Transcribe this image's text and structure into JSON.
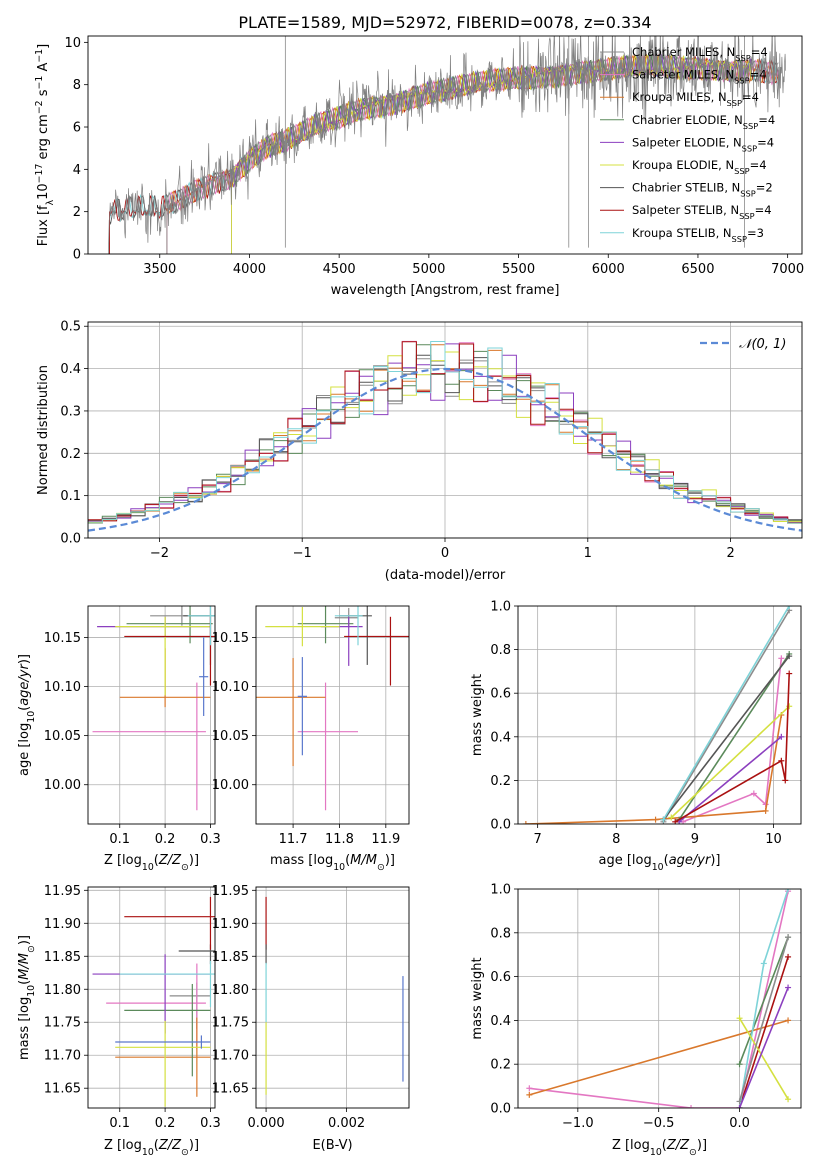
{
  "figure": {
    "title": "PLATE=1589, MJD=52972, FIBERID=0078, z=0.334"
  },
  "colors": {
    "chabrier_miles": "#8c8c8c",
    "salpeter_miles": "#e377c2",
    "kroupa_miles": "#d9782c",
    "chabrier_elodie": "#5b8a5b",
    "salpeter_elodie": "#8b3fbf",
    "kroupa_elodie": "#d4e040",
    "chabrier_stelib": "#555555",
    "salpeter_stelib": "#aa1111",
    "kroupa_stelib": "#7ed3d8",
    "extra_blue": "#5a78cc",
    "normal_curve": "#5b8ad6"
  },
  "chart_data": [
    {
      "id": "spectrum",
      "type": "line",
      "title": "PLATE=1589, MJD=52972, FIBERID=0078, z=0.334",
      "xlabel": "wavelength [Angstrom, rest frame]",
      "ylabel": "Flux [f_λ 10^-17 erg cm^-2 s^-1 A^-1]",
      "xlim": [
        3100,
        7080
      ],
      "ylim": [
        0,
        10.3
      ],
      "xticks": [
        "3500",
        "4000",
        "4500",
        "5000",
        "5500",
        "6000",
        "6500",
        "7000"
      ],
      "yticks": [
        "0",
        "2",
        "4",
        "6",
        "8",
        "10"
      ],
      "legend_position": "right",
      "legend": [
        {
          "key": "chabrier_miles",
          "label": "Chabrier MILES, N",
          "sub": "SSP",
          "suffix": "=4"
        },
        {
          "key": "salpeter_miles",
          "label": "Salpeter MILES, N",
          "sub": "SSP",
          "suffix": "=4"
        },
        {
          "key": "kroupa_miles",
          "label": "Kroupa MILES, N",
          "sub": "SSP",
          "suffix": "=4"
        },
        {
          "key": "chabrier_elodie",
          "label": "Chabrier ELODIE, N",
          "sub": "SSP",
          "suffix": "=4"
        },
        {
          "key": "salpeter_elodie",
          "label": "Salpeter ELODIE, N",
          "sub": "SSP",
          "suffix": "=4"
        },
        {
          "key": "kroupa_elodie",
          "label": "Kroupa ELODIE, N",
          "sub": "SSP",
          "suffix": "=4"
        },
        {
          "key": "chabrier_stelib",
          "label": "Chabrier STELIB, N",
          "sub": "SSP",
          "suffix": "=2"
        },
        {
          "key": "salpeter_stelib",
          "label": "Salpeter STELIB, N",
          "sub": "SSP",
          "suffix": "=4"
        },
        {
          "key": "kroupa_stelib",
          "label": "Kroupa STELIB, N",
          "sub": "SSP",
          "suffix": "=3"
        }
      ],
      "data_trend": {
        "x": [
          3200,
          3300,
          3400,
          3500,
          3600,
          3700,
          3800,
          3900,
          4000,
          4100,
          4200,
          4300,
          4400,
          4500,
          4600,
          4700,
          4800,
          4900,
          5000,
          5200,
          5400,
          5600,
          5800,
          6000,
          6200,
          6400,
          6600,
          6800,
          6950
        ],
        "y": [
          1.9,
          2.1,
          2.2,
          2.1,
          2.5,
          3.0,
          3.4,
          3.7,
          4.5,
          5.1,
          5.3,
          5.7,
          6.1,
          6.4,
          6.8,
          7.0,
          7.2,
          7.4,
          7.6,
          7.9,
          8.2,
          8.4,
          8.6,
          8.7,
          8.8,
          8.8,
          8.8,
          8.7,
          8.5
        ]
      },
      "model_ranges": {
        "chabrier_miles": [
          3540,
          6950
        ],
        "salpeter_miles": [
          3540,
          6950
        ],
        "kroupa_miles": [
          3540,
          6950
        ],
        "chabrier_elodie": [
          3900,
          6800
        ],
        "salpeter_elodie": [
          3900,
          6800
        ],
        "kroupa_elodie": [
          3900,
          6800
        ],
        "chabrier_stelib": [
          3220,
          6950
        ],
        "salpeter_stelib": [
          3220,
          6950
        ],
        "kroupa_stelib": [
          3220,
          6950
        ]
      }
    },
    {
      "id": "residuals",
      "type": "histogram",
      "xlabel": "(data-model)/error",
      "ylabel": "Normed distribution",
      "xlim": [
        -2.5,
        2.5
      ],
      "ylim": [
        0,
        0.51
      ],
      "xticks": [
        "−2",
        "−1",
        "0",
        "1",
        "2"
      ],
      "yticks": [
        "0.0",
        "0.1",
        "0.2",
        "0.3",
        "0.4",
        "0.5"
      ],
      "grid": true,
      "legend_position": "top-right",
      "normal_label": "𝒩(0, 1)",
      "bin_width": 0.1
    },
    {
      "id": "age_vs_Z",
      "type": "errorbar",
      "xlabel": "Z [log10(Z/Z⊙)]",
      "ylabel": "age [log10(age/yr)]",
      "xlim": [
        0.03,
        0.31
      ],
      "ylim": [
        9.96,
        10.182
      ],
      "xticks": [
        "0.1",
        "0.2",
        "0.3"
      ],
      "yticks": [
        "10.00",
        "10.05",
        "10.10",
        "10.15"
      ],
      "grid": true,
      "points": [
        {
          "key": "chabrier_miles",
          "x": 0.237,
          "y": 10.172,
          "xerr": [
            0.07,
            0.06
          ],
          "yerr": [
            0.01,
            0.01
          ]
        },
        {
          "key": "salpeter_miles",
          "x": 0.27,
          "y": 10.054,
          "xerr": [
            0.23,
            0.02
          ],
          "yerr": [
            0.08,
            0.05
          ]
        },
        {
          "key": "kroupa_miles",
          "x": 0.2,
          "y": 10.089,
          "xerr": [
            0.1,
            0.1
          ],
          "yerr": [
            0.01,
            0.05
          ]
        },
        {
          "key": "chabrier_elodie",
          "x": 0.255,
          "y": 10.164,
          "xerr": [
            0.14,
            0.05
          ],
          "yerr": [
            0.02,
            0.03
          ]
        },
        {
          "key": "salpeter_elodie",
          "x": 0.2,
          "y": 10.161,
          "xerr": [
            0.15,
            0.1
          ],
          "yerr": [
            0.01,
            0.01
          ]
        },
        {
          "key": "kroupa_elodie",
          "x": 0.2,
          "y": 10.161,
          "xerr": [
            0.11,
            0.1
          ],
          "yerr": [
            0.07,
            0.01
          ]
        },
        {
          "key": "chabrier_stelib",
          "x": 0.3,
          "y": 10.172,
          "xerr": [
            0.06,
            0.01
          ],
          "yerr": [
            0.05,
            0.01
          ]
        },
        {
          "key": "salpeter_stelib",
          "x": 0.3,
          "y": 10.151,
          "xerr": [
            0.19,
            0.01
          ],
          "yerr": [
            0.05,
            0.02
          ]
        },
        {
          "key": "kroupa_stelib",
          "x": 0.3,
          "y": 10.172,
          "xerr": [
            0.05,
            0.01
          ],
          "yerr": [
            0.03,
            0.01
          ]
        },
        {
          "key": "extra_blue",
          "x": 0.285,
          "y": 10.11,
          "xerr": [
            0.01,
            0.01
          ],
          "yerr": [
            0.04,
            0.04
          ]
        }
      ]
    },
    {
      "id": "age_vs_mass",
      "type": "errorbar",
      "xlabel": "mass [log10(M/M⊙)]",
      "xlim": [
        11.62,
        11.95
      ],
      "ylim": [
        9.96,
        10.182
      ],
      "xticks": [
        "11.7",
        "11.8",
        "11.9"
      ],
      "yticks": [
        "10.00",
        "10.05",
        "10.10",
        "10.15"
      ],
      "grid": true,
      "points": [
        {
          "key": "chabrier_miles",
          "x": 11.82,
          "y": 10.17,
          "xerr": [
            0.03,
            0.02
          ],
          "yerr": [
            0.01,
            0.01
          ]
        },
        {
          "key": "salpeter_miles",
          "x": 11.77,
          "y": 10.054,
          "xerr": [
            0.06,
            0.07
          ],
          "yerr": [
            0.08,
            0.05
          ]
        },
        {
          "key": "kroupa_miles",
          "x": 11.7,
          "y": 10.089,
          "xerr": [
            0.08,
            0.07
          ],
          "yerr": [
            0.07,
            0.04
          ]
        },
        {
          "key": "chabrier_elodie",
          "x": 11.77,
          "y": 10.164,
          "xerr": [
            0.06,
            0.06
          ],
          "yerr": [
            0.02,
            0.02
          ]
        },
        {
          "key": "salpeter_elodie",
          "x": 11.82,
          "y": 10.161,
          "xerr": [
            0.06,
            0.03
          ],
          "yerr": [
            0.04,
            0.01
          ]
        },
        {
          "key": "kroupa_elodie",
          "x": 11.72,
          "y": 10.161,
          "xerr": [
            0.08,
            0.08
          ],
          "yerr": [
            0.02,
            0.02
          ]
        },
        {
          "key": "chabrier_stelib",
          "x": 11.86,
          "y": 10.172,
          "xerr": [
            0.06,
            0.01
          ],
          "yerr": [
            0.05,
            0.01
          ]
        },
        {
          "key": "salpeter_stelib",
          "x": 11.91,
          "y": 10.151,
          "xerr": [
            0.1,
            0.04
          ],
          "yerr": [
            0.05,
            0.02
          ]
        },
        {
          "key": "kroupa_stelib",
          "x": 11.84,
          "y": 10.172,
          "xerr": [
            0.05,
            0.01
          ],
          "yerr": [
            0.03,
            0.01
          ]
        },
        {
          "key": "extra_blue",
          "x": 11.72,
          "y": 10.09,
          "xerr": [
            0.01,
            0.01
          ],
          "yerr": [
            0.06,
            0.04
          ]
        }
      ]
    },
    {
      "id": "weight_vs_age",
      "type": "line",
      "xlabel": "age [log10(age/yr)]",
      "ylabel": "mass weight",
      "xlim": [
        6.75,
        10.35
      ],
      "ylim": [
        0,
        1.0
      ],
      "xticks": [
        "7",
        "8",
        "9",
        "10"
      ],
      "yticks": [
        "0.0",
        "0.2",
        "0.4",
        "0.6",
        "0.8",
        "1.0"
      ],
      "grid": true,
      "series": [
        {
          "key": "chabrier_miles",
          "x": [
            8.6,
            10.2
          ],
          "y": [
            0.01,
            0.98
          ]
        },
        {
          "key": "salpeter_miles",
          "x": [
            8.85,
            9.75,
            9.9,
            10.1
          ],
          "y": [
            0.01,
            0.14,
            0.09,
            0.76
          ]
        },
        {
          "key": "kroupa_miles",
          "x": [
            6.85,
            8.5,
            9.9,
            10.1
          ],
          "y": [
            0.0,
            0.02,
            0.06,
            0.5
          ]
        },
        {
          "key": "chabrier_elodie",
          "x": [
            8.8,
            10.2
          ],
          "y": [
            0.02,
            0.78
          ]
        },
        {
          "key": "salpeter_elodie",
          "x": [
            8.8,
            10.1
          ],
          "y": [
            0.01,
            0.4
          ]
        },
        {
          "key": "kroupa_elodie",
          "x": [
            8.7,
            10.2
          ],
          "y": [
            0.03,
            0.54
          ]
        },
        {
          "key": "chabrier_stelib",
          "x": [
            8.6,
            10.2
          ],
          "y": [
            0.02,
            0.77
          ]
        },
        {
          "key": "salpeter_stelib",
          "x": [
            8.75,
            10.1,
            10.15,
            10.2
          ],
          "y": [
            0.01,
            0.29,
            0.2,
            0.69
          ]
        },
        {
          "key": "kroupa_stelib",
          "x": [
            8.6,
            10.2
          ],
          "y": [
            0.02,
            1.0
          ]
        }
      ]
    },
    {
      "id": "mass_vs_Z",
      "type": "errorbar",
      "xlabel": "Z [log10(Z/Z⊙)]",
      "ylabel": "mass [log10(M/M⊙)]",
      "xlim": [
        0.03,
        0.31
      ],
      "ylim": [
        11.62,
        11.955
      ],
      "xticks": [
        "0.1",
        "0.2",
        "0.3"
      ],
      "yticks": [
        "11.65",
        "11.70",
        "11.75",
        "11.80",
        "11.85",
        "11.90",
        "11.95"
      ],
      "grid": true,
      "points": [
        {
          "key": "chabrier_miles",
          "x": 0.27,
          "y": 11.79,
          "xerr": [
            0.06,
            0.03
          ],
          "yerr": [
            0.05,
            0.02
          ]
        },
        {
          "key": "salpeter_miles",
          "x": 0.27,
          "y": 11.779,
          "xerr": [
            0.2,
            0.02
          ],
          "yerr": [
            0.07,
            0.06
          ]
        },
        {
          "key": "kroupa_miles",
          "x": 0.27,
          "y": 11.697,
          "xerr": [
            0.18,
            0.03
          ],
          "yerr": [
            0.06,
            0.06
          ]
        },
        {
          "key": "chabrier_elodie",
          "x": 0.26,
          "y": 11.768,
          "xerr": [
            0.15,
            0.04
          ],
          "yerr": [
            0.1,
            0.04
          ]
        },
        {
          "key": "salpeter_elodie",
          "x": 0.2,
          "y": 11.823,
          "xerr": [
            0.16,
            0.1
          ],
          "yerr": [
            0.09,
            0.03
          ]
        },
        {
          "key": "kroupa_elodie",
          "x": 0.2,
          "y": 11.712,
          "xerr": [
            0.11,
            0.1
          ],
          "yerr": [
            0.09,
            0.04
          ]
        },
        {
          "key": "chabrier_stelib",
          "x": 0.3,
          "y": 11.858,
          "xerr": [
            0.07,
            0.01
          ],
          "yerr": [
            0.02,
            0.01
          ]
        },
        {
          "key": "salpeter_stelib",
          "x": 0.3,
          "y": 11.91,
          "xerr": [
            0.19,
            0.01
          ],
          "yerr": [
            0.05,
            0.03
          ]
        },
        {
          "key": "kroupa_stelib",
          "x": 0.3,
          "y": 11.823,
          "xerr": [
            0.2,
            0.01
          ],
          "yerr": [
            0.05,
            0.02
          ]
        },
        {
          "key": "extra_blue",
          "x": 0.28,
          "y": 11.72,
          "xerr": [
            0.19,
            0.02
          ],
          "yerr": [
            0.01,
            0.01
          ]
        }
      ]
    },
    {
      "id": "mass_vs_ebv",
      "type": "errorbar",
      "xlabel": "E(B-V)",
      "xlim": [
        -0.00025,
        0.00355
      ],
      "ylim": [
        11.62,
        11.955
      ],
      "xticks": [
        "0.000",
        "0.002"
      ],
      "yticks": [
        "11.65",
        "11.70",
        "11.75",
        "11.80",
        "11.85",
        "11.90",
        "11.95"
      ],
      "grid": true,
      "points": [
        {
          "key": "salpeter_stelib",
          "x": 0.0,
          "y": 11.91,
          "xerr": [
            0,
            0
          ],
          "yerr": [
            0.05,
            0.03
          ]
        },
        {
          "key": "chabrier_stelib",
          "x": 0.0,
          "y": 11.858,
          "xerr": [
            0,
            0
          ],
          "yerr": [
            0.02,
            0.01
          ]
        },
        {
          "key": "kroupa_stelib",
          "x": 0.0,
          "y": 11.8,
          "xerr": [
            0,
            0
          ],
          "yerr": [
            0.05,
            0.04
          ]
        },
        {
          "key": "kroupa_elodie",
          "x": 0.0,
          "y": 11.7,
          "xerr": [
            0,
            0
          ],
          "yerr": [
            0.06,
            0.05
          ]
        },
        {
          "key": "extra_blue",
          "x": 0.0034,
          "y": 11.74,
          "xerr": [
            0,
            0
          ],
          "yerr": [
            0.08,
            0.08
          ]
        }
      ]
    },
    {
      "id": "weight_vs_Z",
      "type": "line",
      "xlabel": "Z [log10(Z/Z⊙)]",
      "ylabel": "mass weight",
      "xlim": [
        -1.37,
        0.38
      ],
      "ylim": [
        0,
        1.0
      ],
      "xticks": [
        "−1.0",
        "−0.5",
        "0.0"
      ],
      "yticks": [
        "0.0",
        "0.2",
        "0.4",
        "0.6",
        "0.8",
        "1.0"
      ],
      "grid": true,
      "series": [
        {
          "key": "salpeter_miles",
          "x": [
            -1.3,
            -0.3,
            0.0,
            0.3
          ],
          "y": [
            0.09,
            0.0,
            0.0,
            0.99
          ]
        },
        {
          "key": "kroupa_miles",
          "x": [
            -1.3,
            0.3
          ],
          "y": [
            0.06,
            0.4
          ]
        },
        {
          "key": "chabrier_elodie",
          "x": [
            0.0,
            0.3
          ],
          "y": [
            0.2,
            0.78
          ]
        },
        {
          "key": "salpeter_stelib",
          "x": [
            0.0,
            0.3
          ],
          "y": [
            0.0,
            0.69
          ]
        },
        {
          "key": "kroupa_stelib",
          "x": [
            0.0,
            0.15,
            0.3
          ],
          "y": [
            0.0,
            0.66,
            1.0
          ]
        },
        {
          "key": "kroupa_elodie",
          "x": [
            0.0,
            0.3
          ],
          "y": [
            0.41,
            0.04
          ]
        },
        {
          "key": "chabrier_miles",
          "x": [
            0.0,
            0.3
          ],
          "y": [
            0.03,
            0.78
          ]
        },
        {
          "key": "salpeter_elodie",
          "x": [
            0.0,
            0.3
          ],
          "y": [
            0.0,
            0.55
          ]
        }
      ]
    }
  ]
}
